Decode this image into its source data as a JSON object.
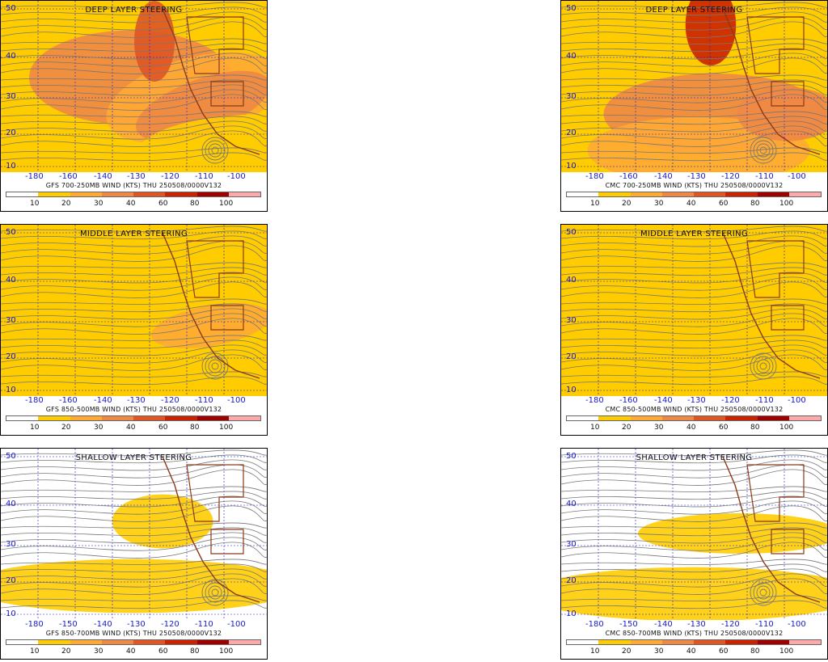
{
  "colors": {
    "bins": [
      "#ffffff",
      "#ffcc00",
      "#ffaa33",
      "#ee8844",
      "#e05522",
      "#cc2200",
      "#a00000",
      "#ffaaaa"
    ],
    "streamline": "#777777",
    "borders": "#8b3a1a",
    "gridline": "#1a1acc",
    "latlon_text": "#1a1acc"
  },
  "colorbar_ticks": [
    "10",
    "20",
    "30",
    "40",
    "60",
    "80",
    "100"
  ],
  "lat_labels": [
    "50",
    "40",
    "30",
    "20",
    "10"
  ],
  "lon_labels": [
    "-180",
    "-160",
    "-150",
    "-140",
    "-130",
    "-120",
    "-110",
    "-100"
  ],
  "panels": [
    {
      "id": "gfs-deep",
      "title": "DEEP LAYER STEERING",
      "caption": "GFS 700-250MB WIND (KTS) THU 250508/0000V132"
    },
    {
      "id": "cmc-deep",
      "title": "DEEP LAYER STEERING",
      "caption": "CMC 700-250MB WIND (KTS) THU 250508/0000V132"
    },
    {
      "id": "gfs-middle",
      "title": "MIDDLE LAYER STEERING",
      "caption": "GFS 850-500MB WIND (KTS) THU 250508/0000V132"
    },
    {
      "id": "cmc-middle",
      "title": "MIDDLE LAYER STEERING",
      "caption": "CMC 850-500MB WIND (KTS) THU 250508/0000V132"
    },
    {
      "id": "gfs-shallow",
      "title": "SHALLOW LAYER STEERING",
      "caption": "GFS 850-700MB WIND (KTS) THU 250508/0000V132"
    },
    {
      "id": "cmc-shallow",
      "title": "SHALLOW LAYER STEERING",
      "caption": "CMC 850-700MB WIND (KTS) THU 250508/0000V132"
    }
  ]
}
